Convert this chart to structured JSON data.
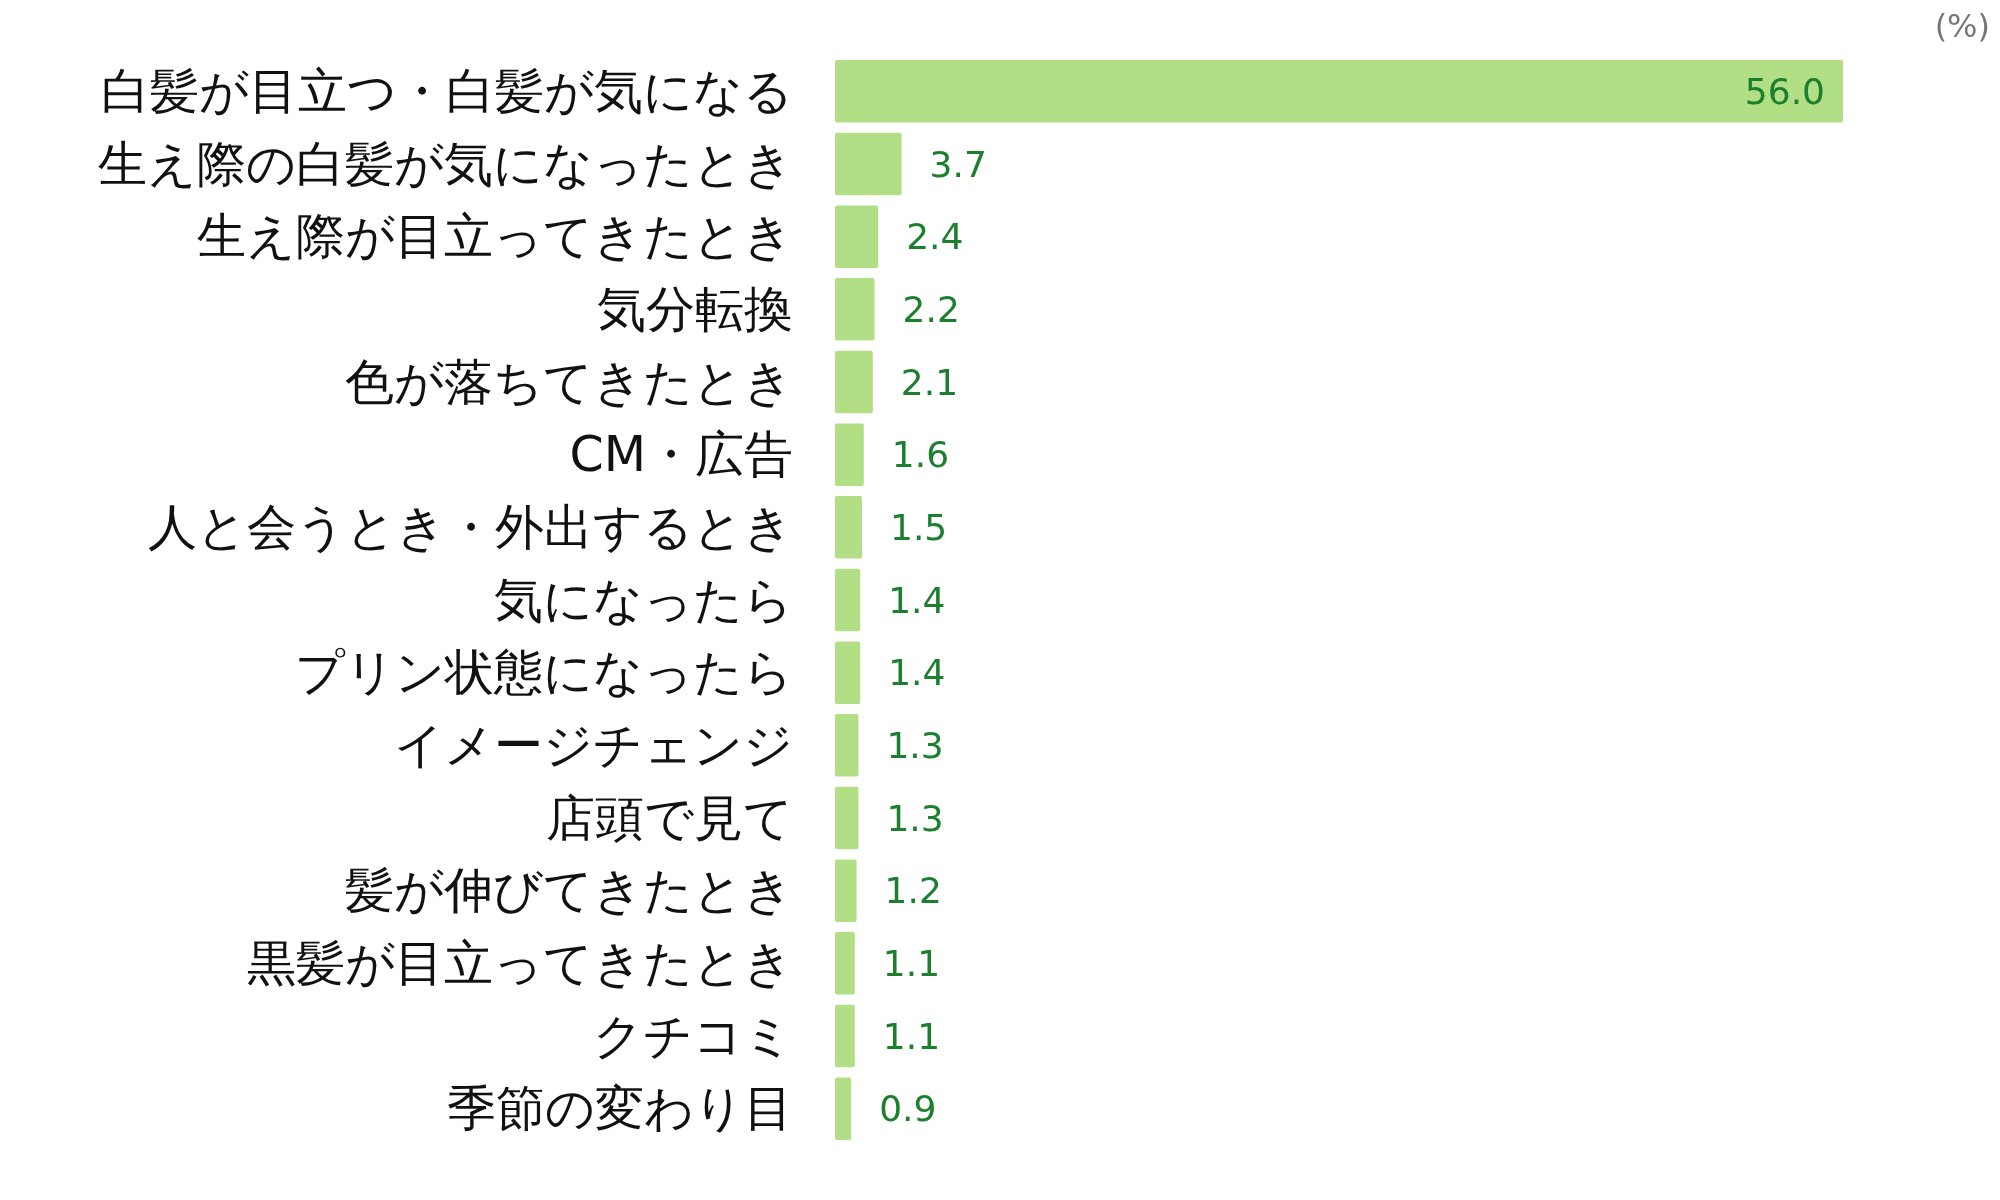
{
  "chart_data": {
    "type": "bar",
    "orientation": "horizontal",
    "xlabel": "(%)",
    "categories": [
      "白髪が目立つ・白髪が気になる",
      "生え際の白髪が気になったとき",
      "生え際が目立ってきたとき",
      "気分転換",
      "色が落ちてきたとき",
      "CM・広告",
      "人と会うとき・外出するとき",
      "気になったら",
      "プリン状態になったら",
      "イメージチェンジ",
      "店頭で見て",
      "髪が伸びてきたとき",
      "黒髪が目立ってきたとき",
      "クチコミ",
      "季節の変わり目"
    ],
    "values": [
      56.0,
      3.7,
      2.4,
      2.2,
      2.1,
      1.6,
      1.5,
      1.4,
      1.4,
      1.3,
      1.3,
      1.2,
      1.1,
      1.1,
      0.9
    ],
    "value_labels": [
      "56.0",
      "3.7",
      "2.4",
      "2.2",
      "2.1",
      "1.6",
      "1.5",
      "1.4",
      "1.4",
      "1.3",
      "1.3",
      "1.2",
      "1.1",
      "1.1",
      "0.9"
    ],
    "color": "#b2de86",
    "tick_labels": "y"
  }
}
